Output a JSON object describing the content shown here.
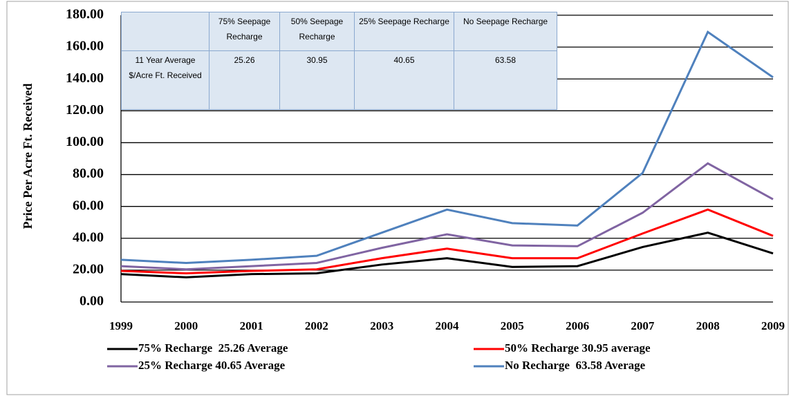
{
  "chart_data": {
    "type": "line",
    "y_label": "Price Per Acre Ft. Received",
    "categories": [
      "1999",
      "2000",
      "2001",
      "2002",
      "2003",
      "2004",
      "2005",
      "2006",
      "2007",
      "2008",
      "2009"
    ],
    "ylim": [
      0,
      180
    ],
    "yticks": [
      {
        "value": 0,
        "label": "0.00"
      },
      {
        "value": 20,
        "label": "20.00"
      },
      {
        "value": 40,
        "label": "40.00"
      },
      {
        "value": 60,
        "label": "60.00"
      },
      {
        "value": 80,
        "label": "80.00"
      },
      {
        "value": 100,
        "label": "100.00"
      },
      {
        "value": 120,
        "label": "120.00"
      },
      {
        "value": 140,
        "label": "140.00"
      },
      {
        "value": 160,
        "label": "160.00"
      },
      {
        "value": 180,
        "label": "180.00"
      }
    ],
    "grid": true,
    "legend": "bottom",
    "series": [
      {
        "name": "75% Recharge  25.26 Average",
        "color": "#000000",
        "values": [
          17.5,
          15.5,
          17.5,
          18,
          23.5,
          27.5,
          22,
          22.5,
          34.5,
          43.5,
          30.5
        ]
      },
      {
        "name": "50% Recharge 30.95 average",
        "color": "#ff0000",
        "values": [
          19.5,
          18,
          19.5,
          20.5,
          27.5,
          33.5,
          27.5,
          27.5,
          43,
          58,
          41.5
        ]
      },
      {
        "name": "25% Recharge 40.65 Average",
        "color": "#8064a2",
        "values": [
          22.5,
          20.5,
          22.5,
          24.5,
          34,
          42.5,
          35.5,
          35,
          56,
          87,
          64.5
        ]
      },
      {
        "name": "No Recharge  63.58 Average",
        "color": "#4f81bd",
        "values": [
          26.5,
          24.5,
          26.5,
          29,
          43.5,
          58,
          49.5,
          48,
          81,
          169.5,
          141
        ]
      }
    ],
    "table": {
      "header": [
        null,
        "75% Seepage Recharge",
        "50% Seepage Recharge",
        "25% Seepage Recharge",
        "No Seepage Recharge"
      ],
      "rows": [
        [
          "11 Year Average $/Acre Ft. Received",
          25.26,
          30.95,
          40.65,
          63.58
        ]
      ]
    }
  }
}
